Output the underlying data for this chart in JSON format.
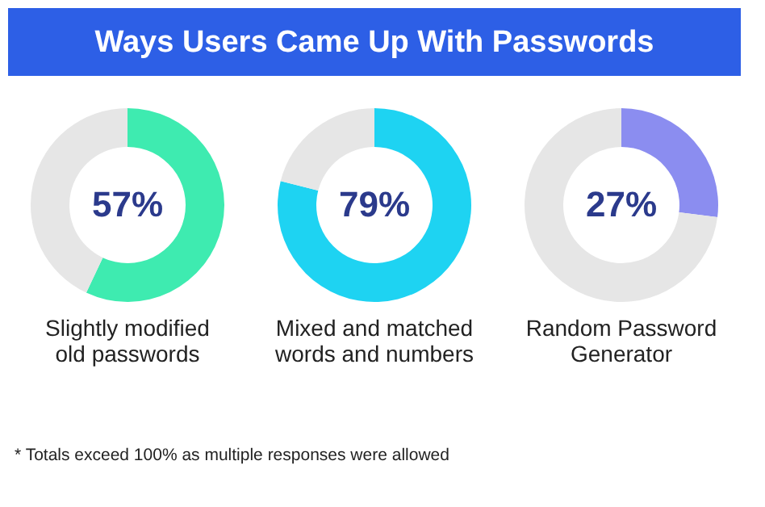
{
  "chart_data": [
    {
      "type": "other",
      "title": "Ways Users Came Up With Passwords",
      "annotations": [
        "* Totals exceed 100% as multiple responses were allowed"
      ]
    },
    {
      "type": "donut",
      "title": "Slightly modified old passwords",
      "categories": [
        null,
        null
      ],
      "values": [
        57,
        43
      ],
      "colors": [
        "#3eebb0",
        "#e6e6e6"
      ],
      "value_labels": [
        "57%",
        null
      ]
    },
    {
      "type": "donut",
      "title": "Mixed and matched words and numbers",
      "categories": [
        null,
        null
      ],
      "values": [
        79,
        21
      ],
      "colors": [
        "#1ed3f2",
        "#e6e6e6"
      ],
      "value_labels": [
        "79%",
        null
      ]
    },
    {
      "type": "donut",
      "title": "Random Password Generator",
      "categories": [
        null,
        null
      ],
      "values": [
        27,
        73
      ],
      "colors": [
        "#8b8df0",
        "#e6e6e6"
      ],
      "value_labels": [
        "27%",
        null
      ]
    }
  ]
}
